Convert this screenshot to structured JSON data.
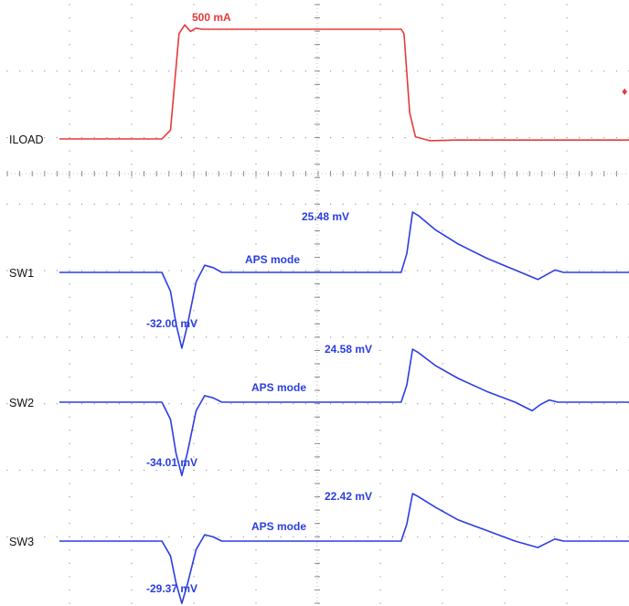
{
  "chart_data": {
    "type": "line",
    "colors": {
      "load": "#e8383a",
      "sw": "#2a3ee0",
      "grid": "#9a9a9a"
    },
    "xlim": [
      0,
      10
    ],
    "channels": [
      {
        "name": "ILOAD",
        "color": "#e8383a",
        "annotations": [
          {
            "text": "500 mA",
            "x": 3.2,
            "y": 500
          }
        ],
        "points": [
          [
            0,
            0
          ],
          [
            1.8,
            0
          ],
          [
            1.95,
            40
          ],
          [
            2.1,
            480
          ],
          [
            2.2,
            520
          ],
          [
            2.3,
            490
          ],
          [
            2.4,
            505
          ],
          [
            2.5,
            500
          ],
          [
            6,
            500
          ],
          [
            6.05,
            480
          ],
          [
            6.15,
            120
          ],
          [
            6.25,
            10
          ],
          [
            6.5,
            -8
          ],
          [
            7,
            -5
          ],
          [
            10,
            -5
          ]
        ]
      },
      {
        "name": "SW1",
        "color": "#2a3ee0",
        "mode_label": "APS mode",
        "annotations": [
          {
            "text": "25.48 mV",
            "x": 6.1,
            "y": 25.48
          },
          {
            "text": "-32.00 mV",
            "x": 2.15,
            "y": -32.0
          }
        ],
        "points": [
          [
            0,
            0
          ],
          [
            1.8,
            0
          ],
          [
            1.95,
            -8
          ],
          [
            2.05,
            -22
          ],
          [
            2.15,
            -32
          ],
          [
            2.25,
            -22
          ],
          [
            2.4,
            -4
          ],
          [
            2.55,
            3
          ],
          [
            2.7,
            2
          ],
          [
            2.85,
            0
          ],
          [
            3.1,
            0
          ],
          [
            6,
            0
          ],
          [
            6.1,
            8
          ],
          [
            6.2,
            25.48
          ],
          [
            6.3,
            24
          ],
          [
            6.6,
            18
          ],
          [
            7,
            12
          ],
          [
            7.5,
            6
          ],
          [
            8,
            1
          ],
          [
            8.4,
            -3
          ],
          [
            8.55,
            -1
          ],
          [
            8.7,
            1
          ],
          [
            8.85,
            0
          ],
          [
            10,
            0
          ]
        ]
      },
      {
        "name": "SW2",
        "color": "#2a3ee0",
        "mode_label": "APS mode",
        "annotations": [
          {
            "text": "24.58 mV",
            "x": 6.1,
            "y": 24.58
          },
          {
            "text": "-34.01 mV",
            "x": 2.15,
            "y": -34.01
          }
        ],
        "points": [
          [
            0,
            0
          ],
          [
            1.8,
            0
          ],
          [
            1.95,
            -8
          ],
          [
            2.05,
            -24
          ],
          [
            2.15,
            -34.01
          ],
          [
            2.25,
            -23
          ],
          [
            2.4,
            -4
          ],
          [
            2.55,
            3
          ],
          [
            2.7,
            2
          ],
          [
            2.85,
            0
          ],
          [
            3.1,
            0
          ],
          [
            6,
            0
          ],
          [
            6.1,
            8
          ],
          [
            6.2,
            24.58
          ],
          [
            6.3,
            23
          ],
          [
            6.6,
            17
          ],
          [
            7,
            11
          ],
          [
            7.5,
            5
          ],
          [
            8,
            0
          ],
          [
            8.3,
            -4
          ],
          [
            8.45,
            -1
          ],
          [
            8.6,
            1
          ],
          [
            8.75,
            0
          ],
          [
            10,
            0
          ]
        ]
      },
      {
        "name": "SW3",
        "color": "#2a3ee0",
        "mode_label": "APS mode",
        "annotations": [
          {
            "text": "22.42 mV",
            "x": 6.1,
            "y": 22.42
          },
          {
            "text": "-29.37 mV",
            "x": 2.15,
            "y": -29.37
          }
        ],
        "points": [
          [
            0,
            0
          ],
          [
            1.8,
            0
          ],
          [
            1.95,
            -7
          ],
          [
            2.05,
            -20
          ],
          [
            2.15,
            -29.37
          ],
          [
            2.25,
            -20
          ],
          [
            2.4,
            -4
          ],
          [
            2.55,
            3
          ],
          [
            2.7,
            2
          ],
          [
            2.85,
            0
          ],
          [
            3.1,
            0
          ],
          [
            6,
            0
          ],
          [
            6.1,
            8
          ],
          [
            6.2,
            22.42
          ],
          [
            6.3,
            21
          ],
          [
            6.6,
            16
          ],
          [
            7,
            10
          ],
          [
            7.5,
            5
          ],
          [
            8,
            0
          ],
          [
            8.4,
            -3
          ],
          [
            8.55,
            -1
          ],
          [
            8.7,
            1
          ],
          [
            8.85,
            0
          ],
          [
            10,
            0
          ]
        ]
      }
    ]
  }
}
